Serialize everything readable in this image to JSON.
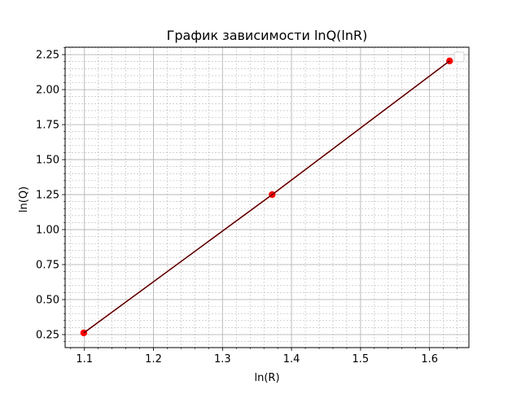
{
  "chart_data": {
    "type": "line",
    "title": "График зависимости lnQ(lnR)",
    "xlabel": "ln(R)",
    "ylabel": "ln(Q)",
    "xlim": [
      1.072,
      1.657
    ],
    "ylim": [
      0.157,
      2.303
    ],
    "x_major_ticks": [
      1.1,
      1.2,
      1.3,
      1.4,
      1.5,
      1.6
    ],
    "x_tick_labels": [
      "1.1",
      "1.2",
      "1.3",
      "1.4",
      "1.5",
      "1.6"
    ],
    "y_major_ticks": [
      0.25,
      0.5,
      0.75,
      1.0,
      1.25,
      1.5,
      1.75,
      2.0,
      2.25
    ],
    "y_tick_labels": [
      "0.25",
      "0.50",
      "0.75",
      "1.00",
      "1.25",
      "1.50",
      "1.75",
      "2.00",
      "2.25"
    ],
    "x_minor_step": 0.02,
    "y_minor_step": 0.05,
    "grid": true,
    "minor_grid": true,
    "legend": "top-right",
    "series": [
      {
        "color": "#ff0000",
        "marker": "circle",
        "x": [
          1.099,
          1.372,
          1.629
        ],
        "y": [
          0.262,
          1.25,
          2.205
        ]
      },
      {
        "color": "#000000",
        "marker": "none",
        "x": [
          1.099,
          1.372,
          1.629
        ],
        "y": [
          0.262,
          1.25,
          2.205
        ]
      }
    ]
  }
}
